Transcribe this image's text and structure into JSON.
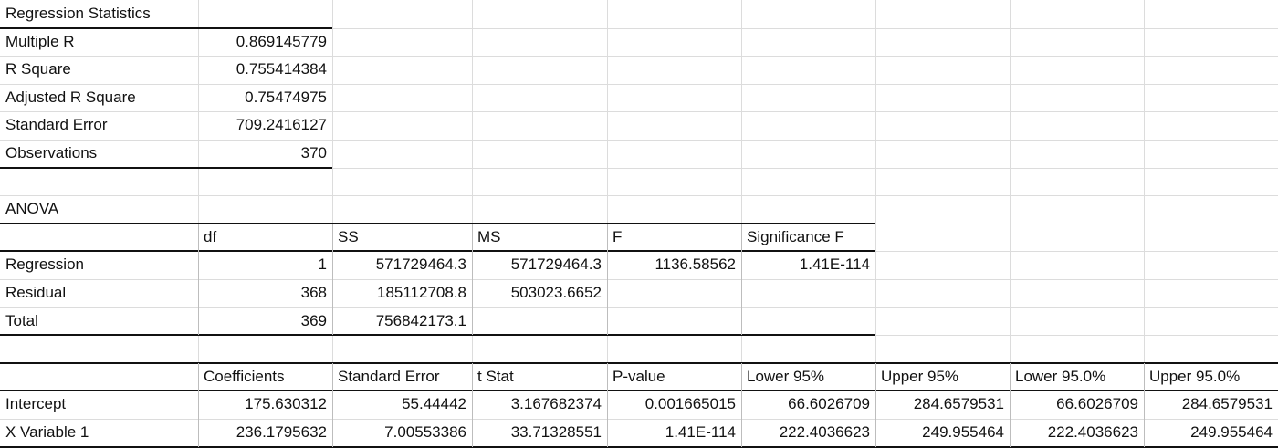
{
  "regression_statistics": {
    "title": "Regression Statistics",
    "rows": [
      {
        "label": "Multiple R",
        "value": "0.869145779"
      },
      {
        "label": "R Square",
        "value": "0.755414384"
      },
      {
        "label": "Adjusted R Square",
        "value": "0.75474975"
      },
      {
        "label": "Standard Error",
        "value": "709.2416127"
      },
      {
        "label": "Observations",
        "value": "370"
      }
    ]
  },
  "anova": {
    "title": "ANOVA",
    "headers": [
      "",
      "df",
      "SS",
      "MS",
      "F",
      "Significance F"
    ],
    "rows": [
      [
        "Regression",
        "1",
        "571729464.3",
        "571729464.3",
        "1136.58562",
        "1.41E-114"
      ],
      [
        "Residual",
        "368",
        "185112708.8",
        "503023.6652",
        "",
        ""
      ],
      [
        "Total",
        "369",
        "756842173.1",
        "",
        "",
        ""
      ]
    ]
  },
  "coefficients": {
    "headers": [
      "",
      "Coefficients",
      "Standard Error",
      "t Stat",
      "P-value",
      "Lower 95%",
      "Upper 95%",
      "Lower 95.0%",
      "Upper 95.0%"
    ],
    "rows": [
      [
        "Intercept",
        "175.630312",
        "55.44442",
        "3.167682374",
        "0.001665015",
        "66.6026709",
        "284.6579531",
        "66.6026709",
        "284.6579531"
      ],
      [
        "X Variable 1",
        "236.1795632",
        "7.00553386",
        "33.71328551",
        "1.41E-114",
        "222.4036623",
        "249.955464",
        "222.4036623",
        "249.955464"
      ]
    ]
  }
}
